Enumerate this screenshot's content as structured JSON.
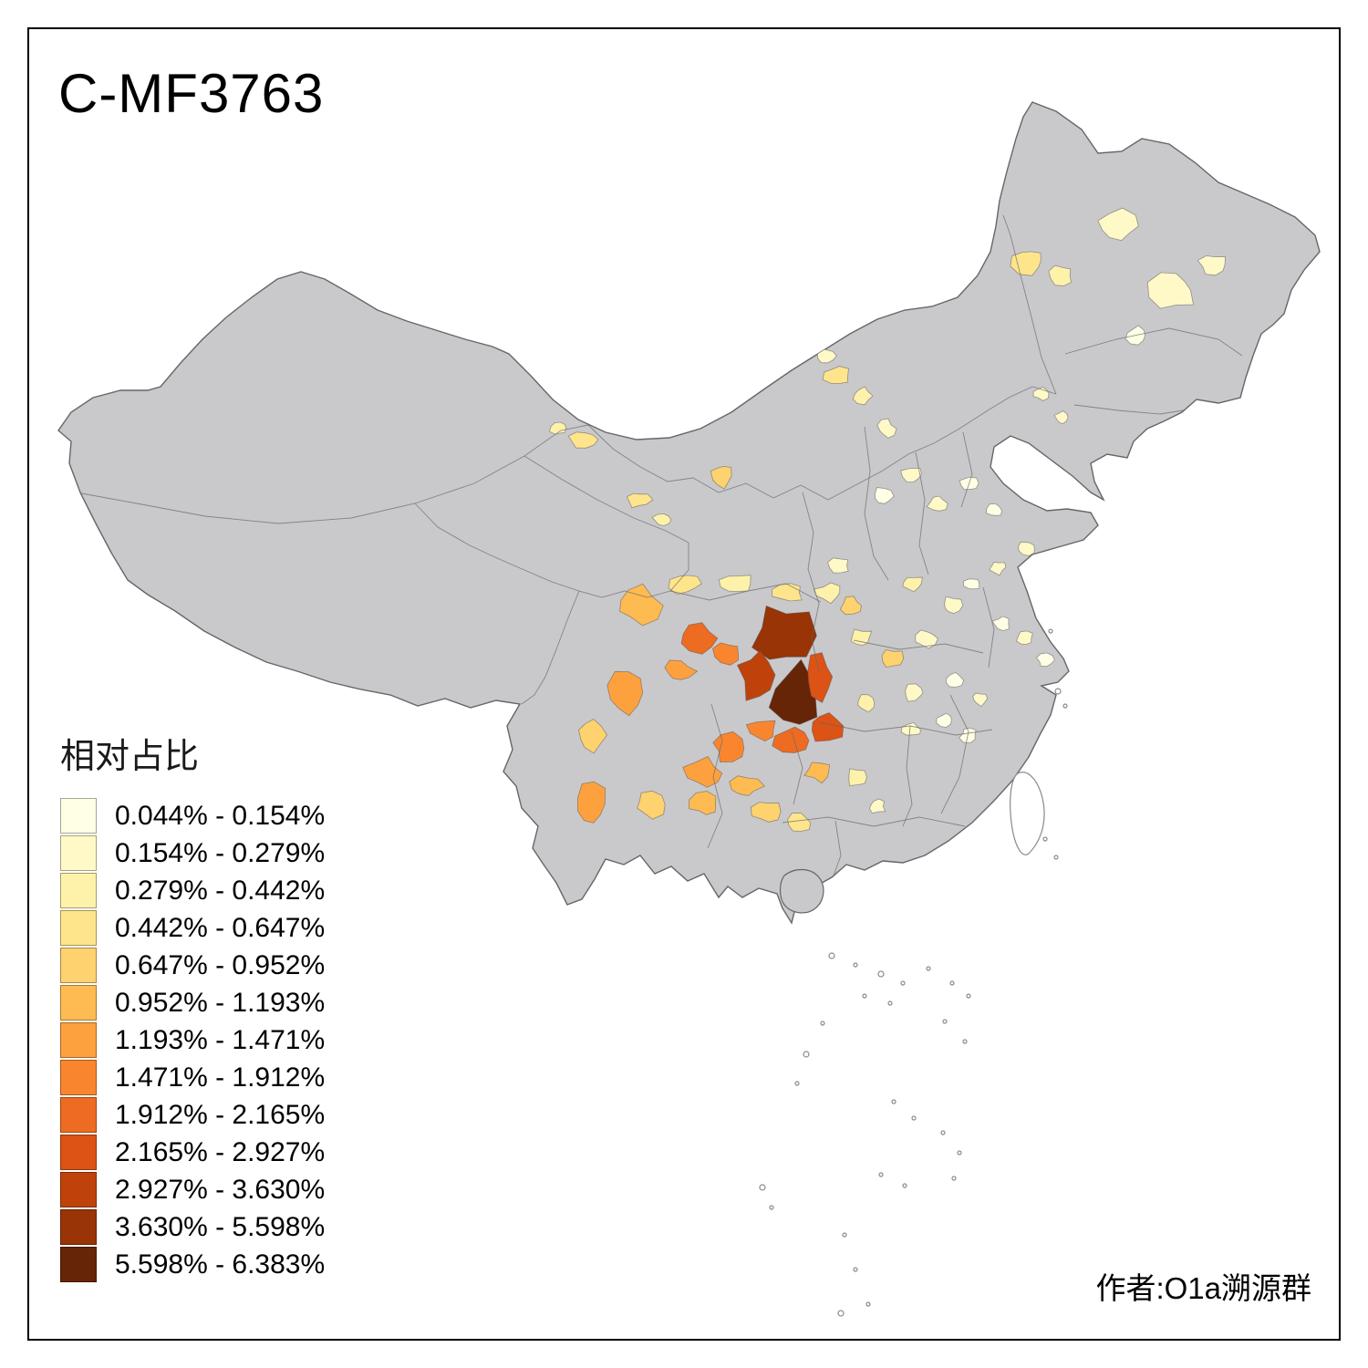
{
  "title": "C-MF3763",
  "legend": {
    "title": "相对占比",
    "items": [
      {
        "label": "0.044% - 0.154%",
        "color": "#FFFFE5"
      },
      {
        "label": "0.154% - 0.279%",
        "color": "#FFF9C8"
      },
      {
        "label": "0.279% - 0.442%",
        "color": "#FEF2AB"
      },
      {
        "label": "0.442% - 0.647%",
        "color": "#FEE58C"
      },
      {
        "label": "0.647% - 0.952%",
        "color": "#FED26E"
      },
      {
        "label": "0.952% - 1.193%",
        "color": "#FEBB52"
      },
      {
        "label": "1.193% - 1.471%",
        "color": "#FDA13F"
      },
      {
        "label": "1.471% - 1.912%",
        "color": "#F9862F"
      },
      {
        "label": "1.912% - 2.165%",
        "color": "#ED6C21"
      },
      {
        "label": "2.165% - 2.927%",
        "color": "#DC5315"
      },
      {
        "label": "2.927% - 3.630%",
        "color": "#BF420A"
      },
      {
        "label": "3.630% - 5.598%",
        "color": "#983405"
      },
      {
        "label": "5.598% - 6.383%",
        "color": "#662506"
      }
    ]
  },
  "attribution": "作者:O1a溯源群",
  "map": {
    "description": "choropleth of China prefectures, hotspot centered on Sichuan-Chongqing-Guizhou",
    "colors": {
      "no_data_fill": "#C9C9CC",
      "border": "#66666a",
      "island_outline": "#8a8a8e",
      "background": "#FFFFFF",
      "frame": "#000000"
    }
  }
}
